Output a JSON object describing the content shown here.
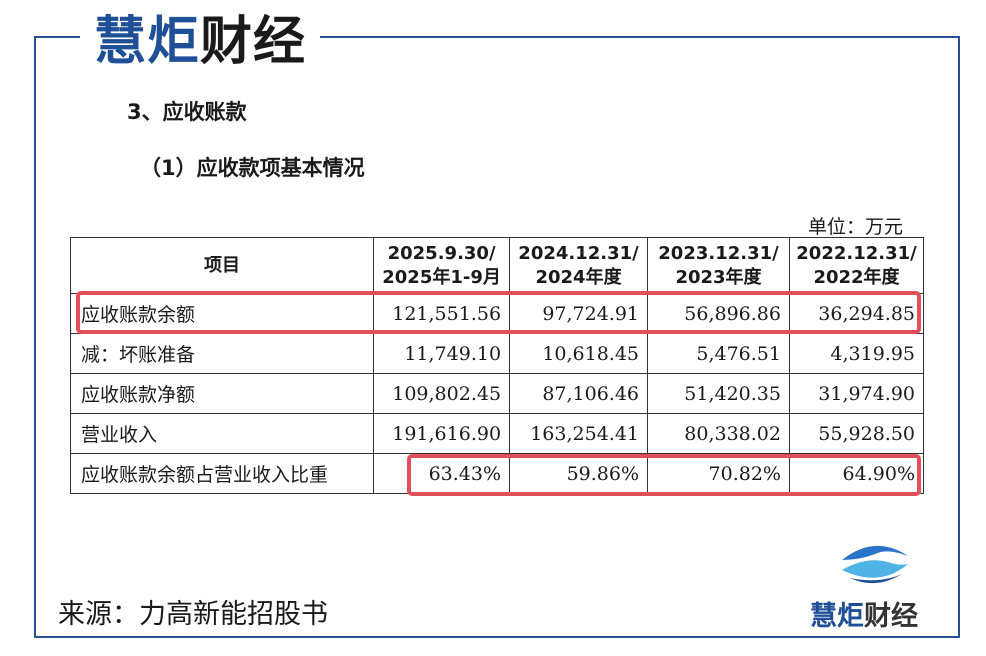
{
  "brand": {
    "part1": "慧炬",
    "part2": "财经",
    "accent_color": "#1f4f97",
    "highlight_color": "#e0505a"
  },
  "section_title": "3、应收账款",
  "sub_title": "（1）应收款项基本情况",
  "unit": "单位：万元",
  "table": {
    "headers": [
      {
        "line1": "项目",
        "line2": ""
      },
      {
        "line1": "2025.9.30/",
        "line2": "2025年1-9月"
      },
      {
        "line1": "2024.12.31/",
        "line2": "2024年度"
      },
      {
        "line1": "2023.12.31/",
        "line2": "2023年度"
      },
      {
        "line1": "2022.12.31/",
        "line2": "2022年度"
      }
    ],
    "rows": [
      {
        "label": "应收账款余额",
        "values": [
          "121,551.56",
          "97,724.91",
          "56,896.86",
          "36,294.85"
        ]
      },
      {
        "label": "减：坏账准备",
        "values": [
          "11,749.10",
          "10,618.45",
          "5,476.51",
          "4,319.95"
        ]
      },
      {
        "label": "应收账款净额",
        "values": [
          "109,802.45",
          "87,106.46",
          "51,420.35",
          "31,974.90"
        ]
      },
      {
        "label": "营业收入",
        "values": [
          "191,616.90",
          "163,254.41",
          "80,338.02",
          "55,928.50"
        ]
      },
      {
        "label": "应收账款余额占营业收入比重",
        "values": [
          "63.43%",
          "59.86%",
          "70.82%",
          "64.90%"
        ]
      }
    ]
  },
  "source": "来源：力高新能招股书"
}
